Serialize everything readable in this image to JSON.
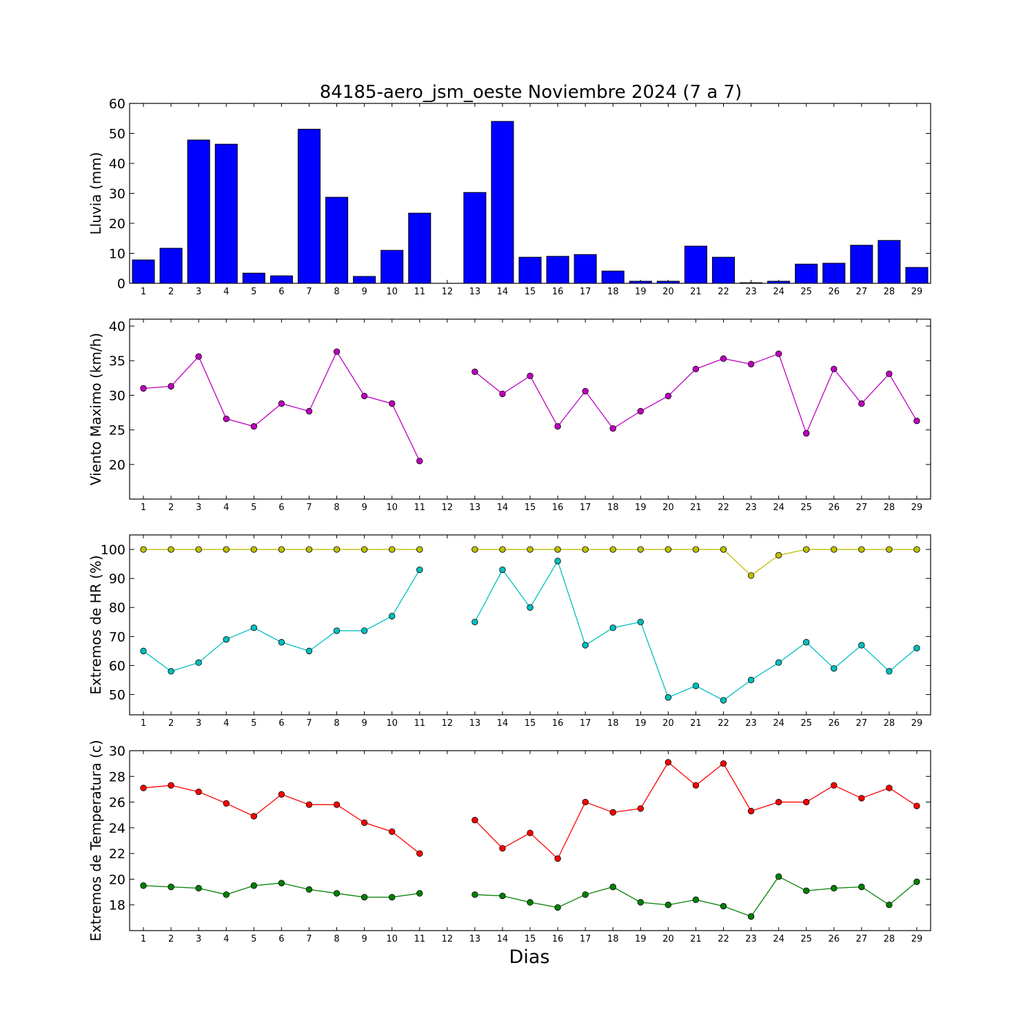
{
  "figure": {
    "title": "84185-aero_jsm_oeste Noviembre 2024  (7 a 7)",
    "xlabel": "Dias"
  },
  "chart_data": [
    {
      "type": "bar",
      "ylabel": "Lluvia (mm)",
      "ylim": [
        0,
        60
      ],
      "yticks": [
        0,
        10,
        20,
        30,
        40,
        50,
        60
      ],
      "grid": false,
      "categories": [
        1,
        2,
        3,
        4,
        5,
        6,
        7,
        8,
        9,
        10,
        11,
        12,
        13,
        14,
        15,
        16,
        17,
        18,
        19,
        20,
        21,
        22,
        23,
        24,
        25,
        26,
        27,
        28,
        29
      ],
      "series": [
        {
          "color": "#0000ff",
          "values": [
            7.8,
            11.7,
            47.8,
            46.4,
            3.4,
            2.5,
            51.4,
            28.7,
            2.3,
            11.0,
            23.4,
            0,
            30.3,
            54.0,
            8.7,
            9.0,
            9.6,
            4.1,
            0.7,
            0.7,
            12.4,
            8.7,
            0.2,
            0.7,
            6.4,
            6.7,
            12.7,
            14.3,
            5.3
          ]
        }
      ]
    },
    {
      "type": "line",
      "ylabel": "Viento Maximo (km/h)",
      "ylim": [
        15,
        41
      ],
      "yticks": [
        20,
        25,
        30,
        35,
        40
      ],
      "grid": false,
      "x": [
        1,
        2,
        3,
        4,
        5,
        6,
        7,
        8,
        9,
        10,
        11,
        12,
        13,
        14,
        15,
        16,
        17,
        18,
        19,
        20,
        21,
        22,
        23,
        24,
        25,
        26,
        27,
        28,
        29
      ],
      "series": [
        {
          "color": "#bf00bf",
          "values": [
            31.0,
            31.3,
            35.6,
            26.6,
            25.5,
            28.8,
            27.7,
            36.3,
            29.9,
            28.8,
            20.5,
            null,
            33.4,
            30.2,
            32.8,
            25.5,
            30.6,
            25.2,
            27.7,
            29.9,
            33.8,
            35.3,
            34.5,
            36.0,
            24.5,
            33.8,
            28.8,
            33.1,
            26.3
          ]
        }
      ]
    },
    {
      "type": "line",
      "ylabel": "Extremos de HR (%)",
      "ylim": [
        43,
        105
      ],
      "yticks": [
        50,
        60,
        70,
        80,
        90,
        100
      ],
      "grid": false,
      "x": [
        1,
        2,
        3,
        4,
        5,
        6,
        7,
        8,
        9,
        10,
        11,
        12,
        13,
        14,
        15,
        16,
        17,
        18,
        19,
        20,
        21,
        22,
        23,
        24,
        25,
        26,
        27,
        28,
        29
      ],
      "series": [
        {
          "color": "#bfbf00",
          "values": [
            100,
            100,
            100,
            100,
            100,
            100,
            100,
            100,
            100,
            100,
            100,
            null,
            100,
            100,
            100,
            100,
            100,
            100,
            100,
            100,
            100,
            100,
            91,
            98,
            100,
            100,
            100,
            100,
            100
          ]
        },
        {
          "color": "#00bfbf",
          "values": [
            65,
            58,
            61,
            69,
            73,
            68,
            65,
            72,
            72,
            77,
            93,
            null,
            75,
            93,
            80,
            96,
            67,
            73,
            75,
            49,
            53,
            48,
            55,
            61,
            68,
            59,
            67,
            58,
            66
          ]
        }
      ]
    },
    {
      "type": "line",
      "ylabel": "Extremos de Temperatura (c)",
      "ylim": [
        16,
        30
      ],
      "yticks": [
        18,
        20,
        22,
        24,
        26,
        28,
        30
      ],
      "grid": false,
      "x": [
        1,
        2,
        3,
        4,
        5,
        6,
        7,
        8,
        9,
        10,
        11,
        12,
        13,
        14,
        15,
        16,
        17,
        18,
        19,
        20,
        21,
        22,
        23,
        24,
        25,
        26,
        27,
        28,
        29
      ],
      "series": [
        {
          "color": "#ff0000",
          "values": [
            27.1,
            27.3,
            26.8,
            25.9,
            24.9,
            26.6,
            25.8,
            25.8,
            24.4,
            23.7,
            22.0,
            null,
            24.6,
            22.4,
            23.6,
            21.6,
            26.0,
            25.2,
            25.5,
            29.1,
            27.3,
            29.0,
            25.3,
            26.0,
            26.0,
            27.3,
            26.3,
            27.1,
            25.7
          ]
        },
        {
          "color": "#008000",
          "values": [
            19.5,
            19.4,
            19.3,
            18.8,
            19.5,
            19.7,
            19.2,
            18.9,
            18.6,
            18.6,
            18.9,
            null,
            18.8,
            18.7,
            18.2,
            17.8,
            18.8,
            19.4,
            18.2,
            18.0,
            18.4,
            17.9,
            17.1,
            20.2,
            19.1,
            19.3,
            19.4,
            18.0,
            19.8
          ]
        }
      ]
    }
  ]
}
